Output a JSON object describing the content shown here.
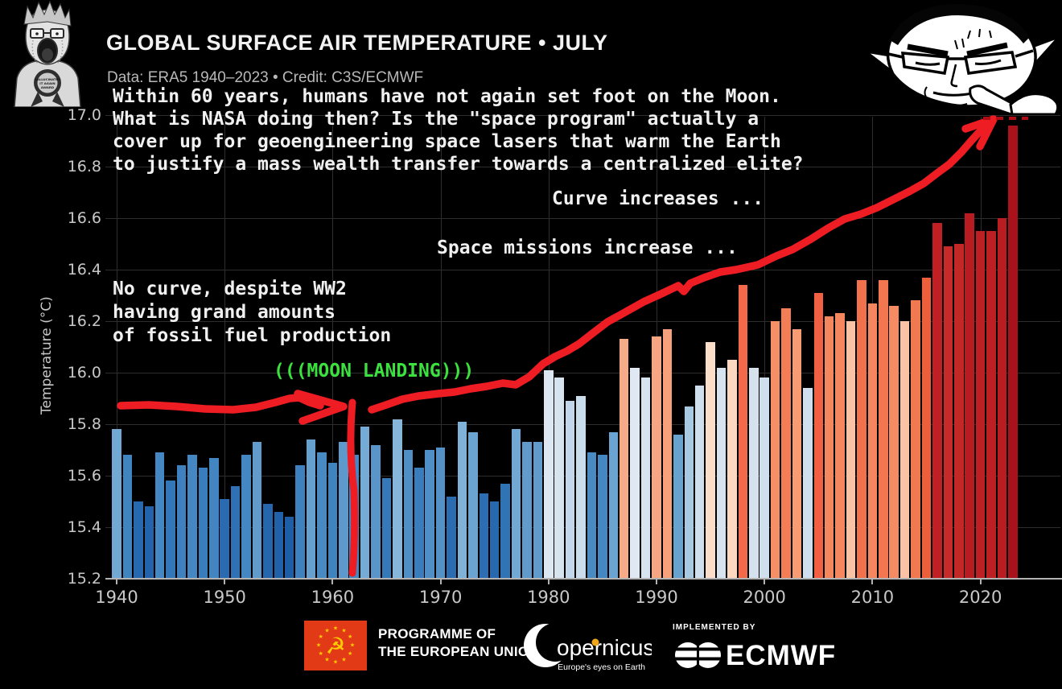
{
  "colors": {
    "background": "#000000",
    "annotation_red": "#ee1c23",
    "dashed_red": "#ad0d13",
    "moon_green": "#3be13e",
    "grid": "#2d2d2d",
    "axis": "#b3b3b3",
    "tick_text": "#c8c8c8",
    "eu_flag_red": "#e23a17",
    "eu_flag_yellow": "#ffcc00"
  },
  "header": {
    "title": "GLOBAL SURFACE AIR TEMPERATURE • JULY",
    "subtitle": "Data: ERA5 1940–2023 • Credit: C3S/ECMWF",
    "para": [
      "Within 60 years, humans have not again set foot on the Moon.",
      "What is NASA doing then? Is the \"space program\" actually a",
      "cover up for geoengineering space lasers that warm the Earth",
      "to justify a mass wealth transfer towards a centralized elite?"
    ]
  },
  "annotations": {
    "curve": "Curve increases ...",
    "space": "Space missions increase ...",
    "no_curve": [
      "No curve, despite WW2",
      "having grand amounts",
      "of fossil fuel production"
    ],
    "moon": "(((MOON LANDING)))"
  },
  "wojak_left": {
    "ribbon": [
      "HALLUCINATED",
      "IT AGAIN",
      "AWARD"
    ]
  },
  "chart_data": {
    "type": "bar",
    "title": "GLOBAL SURFACE AIR TEMPERATURE • JULY",
    "xlabel": "",
    "ylabel": "Temperature (°C)",
    "ylim": [
      15.2,
      17.0
    ],
    "grid": true,
    "year_start": 1940,
    "year_end": 2023,
    "ytick_labels": [
      "15.2",
      "15.4",
      "15.6",
      "15.8",
      "16.0",
      "16.2",
      "16.4",
      "16.6",
      "16.8",
      "17.0"
    ],
    "xtick_labels": [
      "1940",
      "1950",
      "1960",
      "1970",
      "1980",
      "1990",
      "2000",
      "2010",
      "2020"
    ],
    "values": [
      15.78,
      15.68,
      15.5,
      15.48,
      15.69,
      15.58,
      15.64,
      15.68,
      15.63,
      15.67,
      15.51,
      15.56,
      15.68,
      15.73,
      15.49,
      15.46,
      15.44,
      15.64,
      15.74,
      15.69,
      15.65,
      15.73,
      15.68,
      15.79,
      15.72,
      15.59,
      15.82,
      15.7,
      15.63,
      15.7,
      15.71,
      15.52,
      15.81,
      15.77,
      15.53,
      15.5,
      15.57,
      15.78,
      15.73,
      15.73,
      16.01,
      15.98,
      15.89,
      15.91,
      15.69,
      15.68,
      15.77,
      16.13,
      16.02,
      15.98,
      16.14,
      16.17,
      15.76,
      15.87,
      15.95,
      16.12,
      16.02,
      16.05,
      16.34,
      16.02,
      15.98,
      16.2,
      16.25,
      16.17,
      15.94,
      16.31,
      16.22,
      16.23,
      16.2,
      16.36,
      16.27,
      16.36,
      16.26,
      16.2,
      16.28,
      16.37,
      16.58,
      16.49,
      16.5,
      16.62,
      16.55,
      16.55,
      16.6,
      16.96
    ],
    "bar_colors": [
      "#72a8d4",
      "#4084c0",
      "#2868ae",
      "#2263ab",
      "#4487c2",
      "#3377b8",
      "#3e81be",
      "#4487c2",
      "#3a7dbc",
      "#4285c0",
      "#2a6ab0",
      "#3071b5",
      "#4487c2",
      "#609bcc",
      "#2566ad",
      "#2061aa",
      "#1d5ea7",
      "#3e81be",
      "#65a0ce",
      "#4a8ac3",
      "#3f83bf",
      "#5e99cb",
      "#4487c2",
      "#76abd5",
      "#5995c9",
      "#3579b9",
      "#86b6da",
      "#4f8fc6",
      "#3a7dbc",
      "#4f8fc6",
      "#5391c7",
      "#2b6cb1",
      "#80b2d8",
      "#6ca4d1",
      "#2d6eb3",
      "#2868ae",
      "#3174b6",
      "#72a8d4",
      "#609bcc",
      "#609bcc",
      "#dde7f2",
      "#d7e3ef",
      "#c2d8ea",
      "#cadded",
      "#4a8ac3",
      "#4487c2",
      "#6ca4d1",
      "#f6ab88",
      "#dfe8f3",
      "#d7e3ef",
      "#f7a683",
      "#f6a07c",
      "#68a2cf",
      "#a7c9e2",
      "#cfdfee",
      "#fadeca",
      "#d7e3ef",
      "#fbd8bf",
      "#f26a49",
      "#d5e2ee",
      "#cfdfee",
      "#f68e66",
      "#f37e55",
      "#f79b73",
      "#cfdfee",
      "#f16043",
      "#f5875e",
      "#f5875e",
      "#f9c3a4",
      "#f0714c",
      "#f4875f",
      "#f2764f",
      "#f58b62",
      "#f9c3a4",
      "#f07950",
      "#ed5f3b",
      "#c01f24",
      "#c62a29",
      "#c42826",
      "#b81b20",
      "#bd2023",
      "#bd2023",
      "#ba1d21",
      "#a9121a"
    ]
  },
  "footer": {
    "programme": [
      "PROGRAMME OF",
      "THE EUROPEAN UNION"
    ],
    "copernicus_text": "opernicus",
    "copernicus_tagline": "Europe's eyes on Earth",
    "implemented_by": "IMPLEMENTED BY",
    "ecmwf": "ECMWF"
  }
}
